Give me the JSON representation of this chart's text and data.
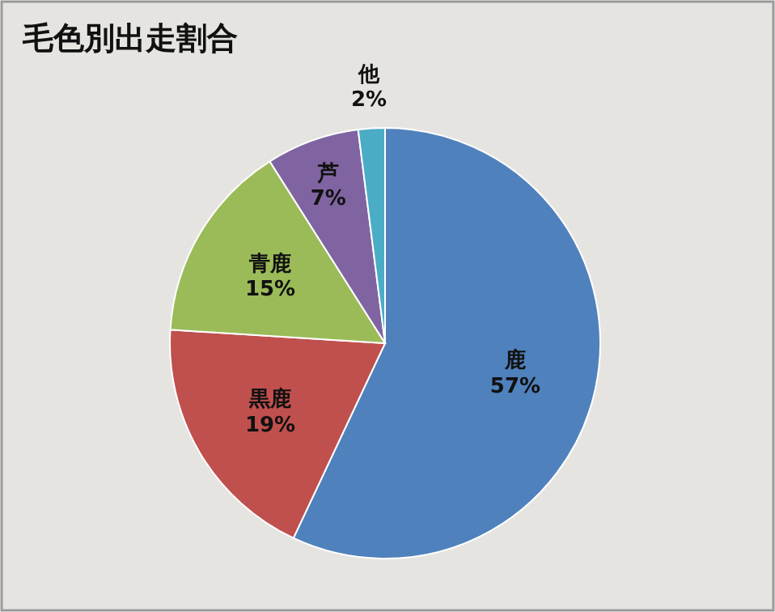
{
  "chart_data": {
    "type": "pie",
    "title": "毛色別出走割合",
    "categories": [
      "鹿",
      "黒鹿",
      "青鹿",
      "芦",
      "他"
    ],
    "values": [
      57,
      19,
      15,
      7,
      2
    ],
    "value_labels": [
      "57%",
      "19%",
      "15%",
      "7%",
      "2%"
    ],
    "colors": [
      "#4f81bd",
      "#c0504d",
      "#9bbb59",
      "#8064a2",
      "#4bacc6"
    ],
    "legend": false
  }
}
